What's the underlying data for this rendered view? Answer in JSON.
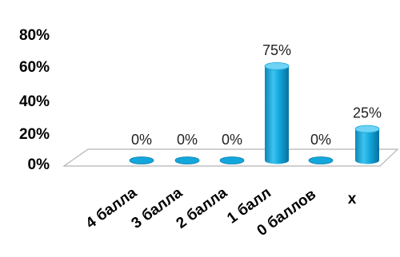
{
  "chart_data": {
    "type": "bar",
    "style": "3d-cylinder",
    "categories": [
      "4 балла",
      "3 балла",
      "2 балла",
      "1 балл",
      "0 баллов",
      "х"
    ],
    "values": [
      0,
      0,
      0,
      75,
      0,
      25
    ],
    "data_labels": [
      "0%",
      "0%",
      "0%",
      "75%",
      "0%",
      "25%"
    ],
    "ylim": [
      0,
      80
    ],
    "yticks": [
      0,
      20,
      40,
      60,
      80
    ],
    "ytick_labels": [
      "0%",
      "20%",
      "40%",
      "60%",
      "80%"
    ],
    "grid": false,
    "legend": "none",
    "bar_color": "#13a7dc",
    "bar_dark_color": "#0a7fb0",
    "bar_top_color": "#6ed3f5"
  }
}
